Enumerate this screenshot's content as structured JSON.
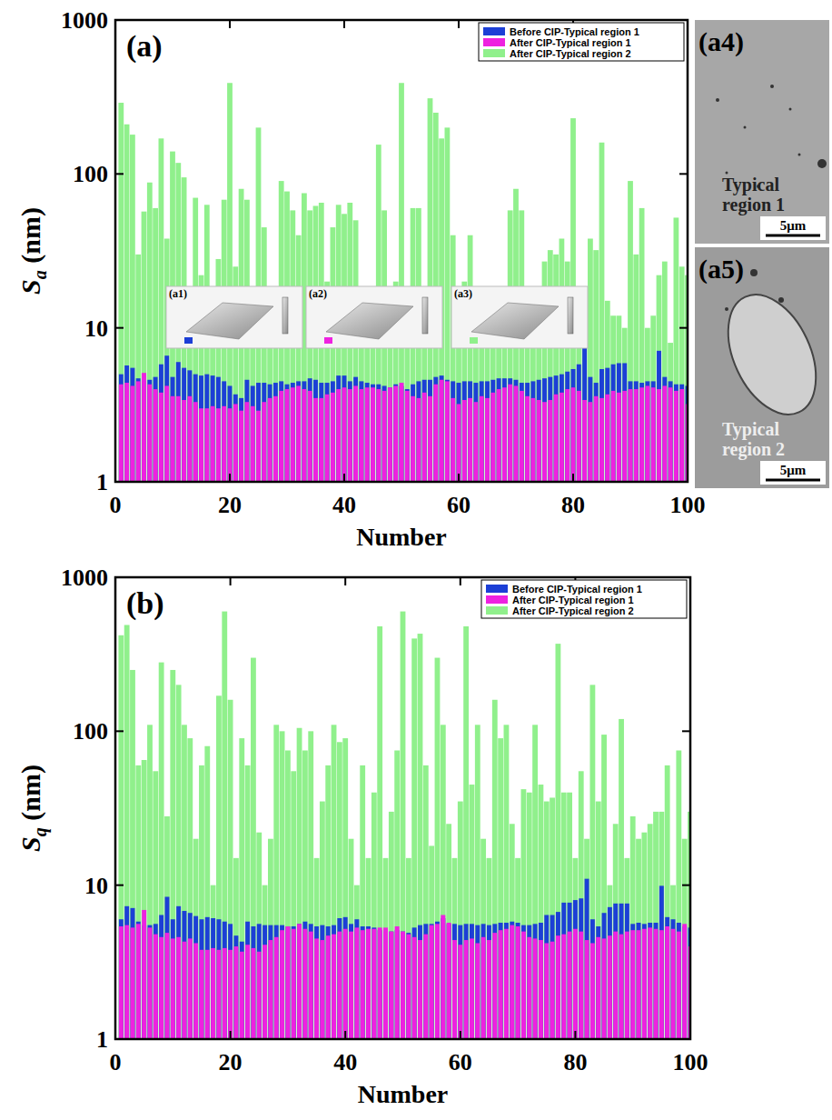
{
  "chart_data": [
    {
      "type": "bar",
      "panel_label": "(a)",
      "xlabel": "Number",
      "ylabel": "Sa (nm)",
      "log": "y",
      "grid": false,
      "legend": "upper right",
      "xlim": [
        0,
        100
      ],
      "xticks": [
        0,
        20,
        40,
        60,
        80,
        100
      ],
      "ylim": [
        1,
        1000
      ],
      "yticks": [
        1,
        10,
        100,
        1000
      ],
      "x": [
        1,
        2,
        3,
        4,
        5,
        6,
        7,
        8,
        9,
        10,
        11,
        12,
        13,
        14,
        15,
        16,
        17,
        18,
        19,
        20,
        21,
        22,
        23,
        24,
        25,
        26,
        27,
        28,
        29,
        30,
        31,
        32,
        33,
        34,
        35,
        36,
        37,
        38,
        39,
        40,
        41,
        42,
        43,
        44,
        45,
        46,
        47,
        48,
        49,
        50,
        51,
        52,
        53,
        54,
        55,
        56,
        57,
        58,
        59,
        60,
        61,
        62,
        63,
        64,
        65,
        66,
        67,
        68,
        69,
        70,
        71,
        72,
        73,
        74,
        75,
        76,
        77,
        78,
        79,
        80,
        81,
        82,
        83,
        84,
        85,
        86,
        87,
        88,
        89,
        90,
        91,
        92,
        93,
        94,
        95,
        96,
        97,
        98,
        99,
        100
      ],
      "series": [
        {
          "name": "After CIP-Typical region 2",
          "color": "#90f08c",
          "values": [
            290,
            210,
            180,
            30,
            57,
            88,
            60,
            170,
            38,
            140,
            118,
            95,
            10,
            70,
            22,
            63,
            10,
            28,
            68,
            390,
            25,
            80,
            68,
            12,
            200,
            45,
            10,
            18,
            90,
            77,
            58,
            40,
            75,
            58,
            62,
            65,
            20,
            45,
            63,
            55,
            65,
            50,
            12,
            10,
            12,
            155,
            58,
            12,
            20,
            390,
            10,
            60,
            60,
            8,
            310,
            250,
            170,
            200,
            40,
            15,
            20,
            40,
            12,
            15,
            10,
            8,
            12,
            18,
            58,
            80,
            58,
            18,
            15,
            10,
            27,
            32,
            30,
            38,
            27,
            230,
            10,
            12,
            38,
            32,
            160,
            15,
            12,
            12,
            10,
            90,
            30,
            60,
            10,
            12,
            22,
            27,
            8,
            52,
            25,
            22
          ]
        },
        {
          "name": "Before CIP-Typical region 1",
          "color": "#1c3fd6",
          "values": [
            5.0,
            5.7,
            5.5,
            4.7,
            4.5,
            4.6,
            4.8,
            5.8,
            6.6,
            4.8,
            6.0,
            5.5,
            5.3,
            5.0,
            4.9,
            5.0,
            4.9,
            4.8,
            4.5,
            4.2,
            3.7,
            3.5,
            4.6,
            4.2,
            4.4,
            4.4,
            4.3,
            4.4,
            4.5,
            4.3,
            4.4,
            4.5,
            4.5,
            4.7,
            4.6,
            4.4,
            4.4,
            4.5,
            4.9,
            4.9,
            4.5,
            4.8,
            4.5,
            4.4,
            4.3,
            4.3,
            4.2,
            4.1,
            4.3,
            4.2,
            4.0,
            4.3,
            4.5,
            4.6,
            4.6,
            4.8,
            4.9,
            4.6,
            4.5,
            4.4,
            4.5,
            4.5,
            4.4,
            4.5,
            4.5,
            4.6,
            4.7,
            4.7,
            4.7,
            4.6,
            4.4,
            4.4,
            4.5,
            4.6,
            4.7,
            4.8,
            4.9,
            5.0,
            5.2,
            5.4,
            5.8,
            7.8,
            4.8,
            4.4,
            5.4,
            5.5,
            5.8,
            5.9,
            5.9,
            4.5,
            4.5,
            4.4,
            4.5,
            4.5,
            7.1,
            4.8,
            4.5,
            4.3,
            4.3,
            4.2
          ]
        },
        {
          "name": "After CIP-Typical region 1",
          "color": "#ee22e0",
          "values": [
            4.3,
            4.4,
            4.2,
            4.5,
            5.1,
            4.3,
            4.0,
            3.8,
            4.2,
            3.6,
            3.6,
            3.4,
            3.6,
            3.3,
            3.0,
            3.0,
            3.1,
            3.0,
            3.1,
            3.0,
            3.2,
            2.9,
            3.3,
            3.1,
            2.9,
            3.3,
            3.5,
            3.6,
            3.9,
            4.0,
            4.1,
            4.2,
            4.0,
            3.9,
            3.5,
            3.5,
            3.7,
            3.8,
            4.0,
            4.1,
            4.0,
            4.2,
            4.0,
            4.1,
            4.1,
            4.0,
            3.9,
            4.1,
            4.2,
            4.4,
            3.9,
            3.6,
            3.5,
            3.8,
            3.6,
            4.3,
            4.6,
            4.5,
            3.5,
            3.2,
            3.4,
            3.5,
            3.3,
            3.6,
            3.5,
            3.8,
            4.0,
            4.1,
            4.3,
            4.2,
            3.9,
            3.6,
            3.5,
            3.4,
            3.3,
            3.4,
            3.7,
            3.8,
            4.0,
            4.1,
            3.9,
            3.4,
            3.3,
            3.6,
            3.5,
            3.7,
            3.9,
            3.8,
            3.9,
            4.0,
            4.0,
            4.1,
            4.2,
            4.1,
            4.0,
            4.2,
            4.1,
            3.9,
            4.0,
            3.2
          ]
        }
      ],
      "legend_order": [
        "Before CIP-Typical region 1",
        "After CIP-Typical region 1",
        "After CIP-Typical region 2"
      ],
      "insets": [
        "(a1)",
        "(a2)",
        "(a3)"
      ]
    },
    {
      "type": "bar",
      "panel_label": "(b)",
      "xlabel": "Number",
      "ylabel": "Sq (nm)",
      "log": "y",
      "grid": false,
      "legend": "upper right",
      "xlim": [
        0,
        100
      ],
      "xticks": [
        0,
        20,
        40,
        60,
        80,
        100
      ],
      "ylim": [
        1,
        1000
      ],
      "yticks": [
        1,
        10,
        100,
        1000
      ],
      "x": [
        1,
        2,
        3,
        4,
        5,
        6,
        7,
        8,
        9,
        10,
        11,
        12,
        13,
        14,
        15,
        16,
        17,
        18,
        19,
        20,
        21,
        22,
        23,
        24,
        25,
        26,
        27,
        28,
        29,
        30,
        31,
        32,
        33,
        34,
        35,
        36,
        37,
        38,
        39,
        40,
        41,
        42,
        43,
        44,
        45,
        46,
        47,
        48,
        49,
        50,
        51,
        52,
        53,
        54,
        55,
        56,
        57,
        58,
        59,
        60,
        61,
        62,
        63,
        64,
        65,
        66,
        67,
        68,
        69,
        70,
        71,
        72,
        73,
        74,
        75,
        76,
        77,
        78,
        79,
        80,
        81,
        82,
        83,
        84,
        85,
        86,
        87,
        88,
        89,
        90,
        91,
        92,
        93,
        94,
        95,
        96,
        97,
        98,
        99,
        100
      ],
      "series": [
        {
          "name": "After CIP-Typical region 2",
          "color": "#90f08c",
          "values": [
            420,
            490,
            250,
            60,
            65,
            110,
            55,
            280,
            28,
            250,
            200,
            110,
            90,
            20,
            60,
            80,
            10,
            170,
            600,
            160,
            15,
            90,
            60,
            300,
            22,
            10,
            20,
            110,
            100,
            75,
            55,
            105,
            75,
            100,
            15,
            35,
            60,
            110,
            85,
            90,
            20,
            10,
            60,
            15,
            40,
            480,
            15,
            30,
            75,
            600,
            15,
            400,
            430,
            60,
            18,
            300,
            110,
            25,
            15,
            35,
            480,
            45,
            110,
            20,
            15,
            160,
            90,
            110,
            25,
            15,
            42,
            40,
            110,
            45,
            35,
            37,
            370,
            40,
            40,
            15,
            55,
            20,
            200,
            35,
            95,
            10,
            25,
            120,
            15,
            28,
            20,
            22,
            25,
            30,
            30,
            60,
            10,
            75,
            20,
            30
          ]
        },
        {
          "name": "Before CIP-Typical region 1",
          "color": "#1c3fd6",
          "values": [
            6.0,
            7.3,
            7.1,
            5.8,
            5.5,
            5.5,
            5.6,
            6.4,
            8.4,
            6.0,
            7.3,
            6.8,
            6.6,
            6.3,
            6.0,
            6.2,
            6.1,
            6.0,
            5.8,
            5.6,
            4.7,
            4.3,
            5.8,
            5.4,
            5.6,
            5.5,
            5.5,
            5.5,
            5.5,
            5.4,
            5.4,
            5.6,
            5.8,
            5.6,
            5.4,
            5.5,
            5.4,
            5.5,
            6.1,
            6.2,
            5.6,
            6.0,
            5.4,
            5.4,
            5.3,
            5.1,
            5.0,
            5.0,
            5.1,
            5.0,
            4.9,
            5.3,
            5.5,
            5.6,
            5.6,
            5.8,
            6.1,
            5.6,
            5.6,
            5.5,
            5.6,
            5.6,
            5.5,
            5.6,
            5.5,
            5.6,
            5.7,
            5.7,
            5.8,
            5.7,
            5.5,
            5.5,
            5.6,
            5.7,
            6.4,
            6.4,
            6.7,
            7.7,
            7.7,
            8.0,
            8.2,
            11.0,
            6.0,
            5.4,
            6.6,
            7.2,
            7.6,
            7.6,
            7.6,
            5.6,
            5.7,
            5.6,
            5.7,
            5.7,
            9.9,
            6.2,
            6.0,
            5.7,
            5.4,
            5.3
          ]
        },
        {
          "name": "After CIP-Typical region 1",
          "color": "#ee22e0",
          "values": [
            5.4,
            5.5,
            5.3,
            5.6,
            6.9,
            5.3,
            4.8,
            4.6,
            4.9,
            4.5,
            4.6,
            4.3,
            4.5,
            4.2,
            3.8,
            3.8,
            3.9,
            3.8,
            3.9,
            3.8,
            4.0,
            3.7,
            4.1,
            3.9,
            3.7,
            4.1,
            4.4,
            4.6,
            5.1,
            5.4,
            5.2,
            5.6,
            5.2,
            5.0,
            4.5,
            4.4,
            4.7,
            4.8,
            5.0,
            5.2,
            5.0,
            5.3,
            5.1,
            5.2,
            5.2,
            5.3,
            5.3,
            5.0,
            5.4,
            5.0,
            4.8,
            4.6,
            4.4,
            4.8,
            5.5,
            5.6,
            6.4,
            5.7,
            4.4,
            4.1,
            4.4,
            4.5,
            4.2,
            4.6,
            4.4,
            4.9,
            5.1,
            5.2,
            5.5,
            5.4,
            5.0,
            4.6,
            4.5,
            4.4,
            4.2,
            4.3,
            4.7,
            4.8,
            5.0,
            5.2,
            5.0,
            4.4,
            4.2,
            4.6,
            4.5,
            4.7,
            5.0,
            4.8,
            5.0,
            5.1,
            5.1,
            5.2,
            5.3,
            5.2,
            5.1,
            5.4,
            5.2,
            5.0,
            5.6,
            4.0
          ]
        }
      ],
      "legend_order": [
        "Before CIP-Typical region 1",
        "After CIP-Typical region 1",
        "After CIP-Typical region 2"
      ]
    }
  ],
  "micrographs": [
    {
      "label": "(a4)",
      "caption": "Typical region 1",
      "scale": "5μm"
    },
    {
      "label": "(a5)",
      "caption": "Typical region 2",
      "scale": "5μm"
    }
  ]
}
